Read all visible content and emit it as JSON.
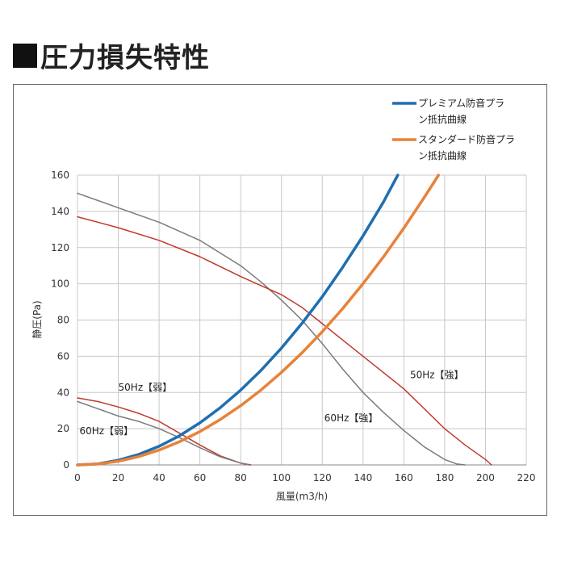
{
  "title": "圧力損失特性",
  "chart_data": {
    "type": "line",
    "xlabel": "風量(m3/h)",
    "ylabel": "静圧(Pa)",
    "xlim": [
      0,
      220
    ],
    "ylim": [
      0,
      160
    ],
    "xticks": [
      0,
      20,
      40,
      60,
      80,
      100,
      120,
      140,
      160,
      180,
      200,
      220
    ],
    "yticks": [
      0,
      20,
      40,
      60,
      80,
      100,
      120,
      140,
      160
    ],
    "grid": true,
    "legend_position": "top-right",
    "series": [
      {
        "name": "プレミアム防音プラン抵抗曲線",
        "legend_lines": [
          "プレミアム防音プラ",
          "ン抵抗曲線"
        ],
        "color": "#1f6fb0",
        "width": 3.5,
        "x": [
          0,
          10,
          20,
          30,
          40,
          50,
          60,
          70,
          80,
          90,
          100,
          110,
          120,
          130,
          140,
          150,
          157
        ],
        "y": [
          0,
          0.6,
          2.6,
          5.8,
          10.3,
          16.1,
          23.2,
          31.6,
          41.3,
          52.3,
          64.5,
          78.1,
          92.9,
          109.1,
          126.5,
          145.2,
          160
        ]
      },
      {
        "name": "スタンダード防音プラン抵抗曲線",
        "legend_lines": [
          "スタンダード防音プラ",
          "ン抵抗曲線"
        ],
        "color": "#e8823a",
        "width": 3.5,
        "x": [
          0,
          10,
          20,
          30,
          40,
          50,
          60,
          70,
          80,
          90,
          100,
          110,
          120,
          130,
          140,
          150,
          160,
          170,
          177
        ],
        "y": [
          0,
          0.5,
          2.0,
          4.6,
          8.2,
          12.8,
          18.4,
          25.1,
          32.7,
          41.4,
          51.1,
          61.8,
          73.6,
          86.3,
          100.1,
          114.9,
          130.8,
          147.7,
          160
        ]
      },
      {
        "name": "60Hz【強】",
        "color": "#7a7a7a",
        "width": 1.5,
        "x": [
          0,
          20,
          40,
          60,
          80,
          90,
          100,
          110,
          120,
          130,
          140,
          150,
          160,
          170,
          180,
          186,
          190
        ],
        "y": [
          150,
          142,
          134,
          124,
          110,
          101,
          91,
          80,
          67,
          53,
          40,
          29,
          19,
          10,
          3,
          0.5,
          0
        ]
      },
      {
        "name": "50Hz【強】",
        "color": "#c0392b",
        "width": 1.5,
        "x": [
          0,
          20,
          40,
          60,
          80,
          90,
          100,
          110,
          120,
          130,
          140,
          150,
          160,
          170,
          180,
          190,
          200,
          203
        ],
        "y": [
          137,
          131,
          124,
          115,
          104,
          99,
          94,
          87,
          78,
          69,
          60,
          51,
          42,
          31,
          20,
          11,
          3,
          0
        ]
      },
      {
        "name": "50Hz【弱】",
        "color": "#c0392b",
        "width": 1.5,
        "x": [
          0,
          10,
          20,
          30,
          40,
          50,
          60,
          70,
          80,
          85
        ],
        "y": [
          37,
          35,
          32,
          28.5,
          24,
          17.5,
          11,
          5,
          1,
          0
        ]
      },
      {
        "name": "60Hz【弱】",
        "color": "#7a7a7a",
        "width": 1.5,
        "x": [
          0,
          10,
          20,
          30,
          40,
          50,
          60,
          70,
          80,
          84
        ],
        "y": [
          35,
          31,
          27,
          24,
          20,
          15,
          9.5,
          4.5,
          1,
          0
        ]
      }
    ],
    "annotations": [
      {
        "text": "50Hz【弱】",
        "x": 20,
        "y": 41
      },
      {
        "text": "60Hz【弱】",
        "x": 1,
        "y": 17
      },
      {
        "text": "60Hz【強】",
        "x": 121,
        "y": 24
      },
      {
        "text": "50Hz【強】",
        "x": 163,
        "y": 48
      }
    ]
  }
}
